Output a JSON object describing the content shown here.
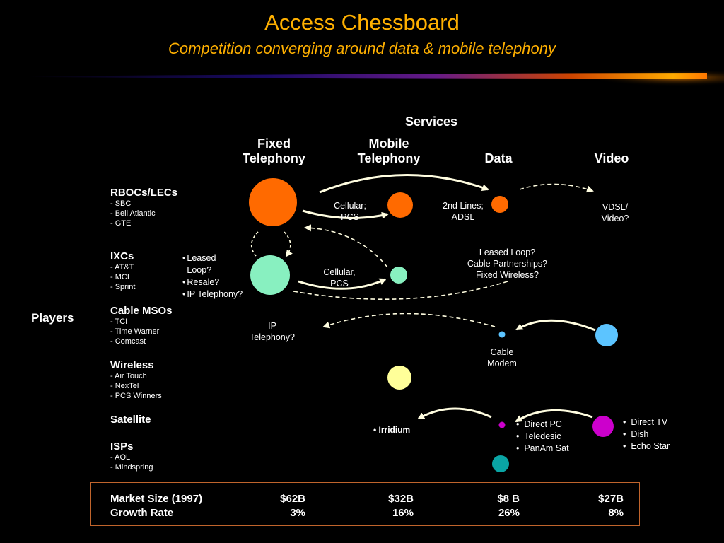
{
  "title": "Access Chessboard",
  "subtitle": "Competition converging around data & mobile telephony",
  "services_label": "Services",
  "columns": [
    "Fixed\nTelephony",
    "Mobile\nTelephony",
    "Data",
    "Video"
  ],
  "players_label": "Players",
  "players": [
    {
      "name": "RBOCs/LECs",
      "members": [
        "- SBC",
        "- Bell Atlantic",
        "- GTE"
      ]
    },
    {
      "name": "IXCs",
      "members": [
        "- AT&T",
        "- MCI",
        "- Sprint"
      ]
    },
    {
      "name": "Cable MSOs",
      "members": [
        "- TCI",
        "- Time Warner",
        "- Comcast"
      ]
    },
    {
      "name": "Wireless",
      "members": [
        "- Air Touch",
        "- NexTel",
        "- PCS Winners"
      ]
    },
    {
      "name": "Satellite",
      "members": []
    },
    {
      "name": "ISPs",
      "members": [
        "- AOL",
        "- Mindspring"
      ]
    }
  ],
  "notes": {
    "rboc_mobile": "Cellular;\nPCS",
    "rboc_data": "2nd Lines;\nADSL",
    "rboc_video": "VDSL/\nVideo?",
    "ixc_fixed_bullets": [
      "Leased\nLoop?",
      "Resale?",
      "IP Telephony?"
    ],
    "ixc_data": "Leased Loop?\nCable Partnerships?\nFixed Wireless?",
    "ixc_mobile": "Cellular,\nPCS",
    "cable_fixed": "IP\nTelephony?",
    "cable_data": "Cable\nModem",
    "wireless_bullet": "Irridium",
    "satellite_data_bullets": [
      "Direct PC",
      "Teledesic",
      "PanAm Sat"
    ],
    "satellite_video_bullets": [
      "Direct TV",
      "Dish",
      "Echo Star"
    ]
  },
  "colors": {
    "title": "#ffb000",
    "rbocs": "#ff6a00",
    "ixcs": "#88f0c0",
    "cable": "#5cc4ff",
    "wireless": "#ffff99",
    "satellite": "#cc00cc",
    "isps": "#0aa5a5",
    "arrow": "#fffde0",
    "box_border": "#c0642c"
  },
  "market": {
    "row1_label": "Market Size (1997)",
    "row2_label": "Growth Rate",
    "sizes": [
      "$62B",
      "$32B",
      "$8 B",
      "$27B"
    ],
    "growth": [
      "3%",
      "16%",
      "26%",
      "8%"
    ]
  }
}
